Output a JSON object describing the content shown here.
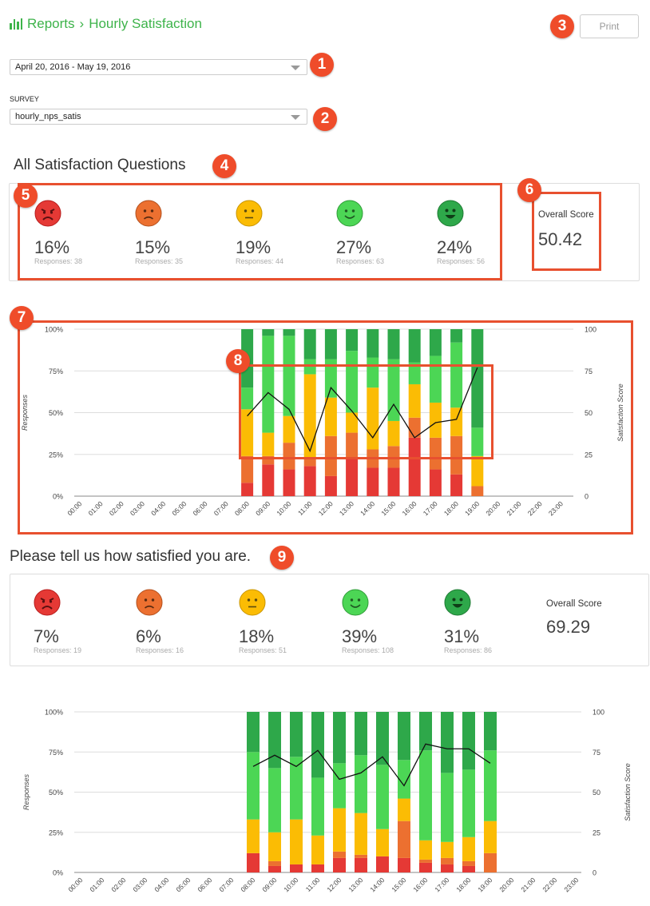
{
  "header": {
    "breadcrumb_root": "Reports",
    "separator": "›",
    "page_title": "Hourly Satisfaction"
  },
  "print_label": "Print",
  "date_range": {
    "value": "April 20, 2016 - May 19, 2016"
  },
  "survey": {
    "label": "SURVEY",
    "value": "hourly_nps_satis"
  },
  "callouts": [
    "1",
    "2",
    "3",
    "4",
    "5",
    "6",
    "7",
    "8",
    "9"
  ],
  "colors": {
    "very_unhappy": "#e53935",
    "unhappy": "#ec7030",
    "neutral": "#fbbc04",
    "happy": "#4cd655",
    "very_happy": "#2ea84a",
    "brand": "#3db34a",
    "callout": "#ef4c2a"
  },
  "sections": [
    {
      "title": "All Satisfaction Questions",
      "overall_label": "Overall Score",
      "overall_score": "50.42",
      "ratings": [
        {
          "icon": "very-unhappy-face-icon",
          "pct": "16%",
          "responses": "Responses: 38"
        },
        {
          "icon": "unhappy-face-icon",
          "pct": "15%",
          "responses": "Responses: 35"
        },
        {
          "icon": "neutral-face-icon",
          "pct": "19%",
          "responses": "Responses: 44"
        },
        {
          "icon": "happy-face-icon",
          "pct": "27%",
          "responses": "Responses: 63"
        },
        {
          "icon": "very-happy-face-icon",
          "pct": "24%",
          "responses": "Responses: 56"
        }
      ]
    },
    {
      "title": "Please tell us how satisfied you are.",
      "overall_label": "Overall Score",
      "overall_score": "69.29",
      "ratings": [
        {
          "icon": "very-unhappy-face-icon",
          "pct": "7%",
          "responses": "Responses: 19"
        },
        {
          "icon": "unhappy-face-icon",
          "pct": "6%",
          "responses": "Responses: 16"
        },
        {
          "icon": "neutral-face-icon",
          "pct": "18%",
          "responses": "Responses: 51"
        },
        {
          "icon": "happy-face-icon",
          "pct": "39%",
          "responses": "Responses: 108"
        },
        {
          "icon": "very-happy-face-icon",
          "pct": "31%",
          "responses": "Responses: 86"
        }
      ]
    }
  ],
  "chart_data": [
    {
      "type": "bar",
      "stacked": true,
      "ylabel": "Responses",
      "y2label": "Satisfaction Score",
      "ylim": [
        0,
        100
      ],
      "y2lim": [
        0,
        100
      ],
      "yticks": [
        "0%",
        "25%",
        "50%",
        "75%",
        "100%"
      ],
      "y2ticks": [
        "0",
        "25",
        "50",
        "75",
        "100"
      ],
      "grid": true,
      "categories": [
        "00:00",
        "01:00",
        "02:00",
        "03:00",
        "04:00",
        "05:00",
        "06:00",
        "07:00",
        "08:00",
        "09:00",
        "10:00",
        "11:00",
        "12:00",
        "13:00",
        "14:00",
        "15:00",
        "16:00",
        "17:00",
        "18:00",
        "19:00",
        "20:00",
        "21:00",
        "22:00",
        "23:00"
      ],
      "series": [
        {
          "values": [
            0,
            0,
            0,
            0,
            0,
            0,
            0,
            0,
            8,
            19,
            16,
            18,
            12,
            23,
            17,
            17,
            35,
            16,
            13,
            0,
            0,
            0,
            0,
            0
          ]
        },
        {
          "values": [
            0,
            0,
            0,
            0,
            0,
            0,
            0,
            0,
            16,
            5,
            16,
            5,
            24,
            15,
            11,
            13,
            12,
            19,
            23,
            6,
            0,
            0,
            0,
            0
          ]
        },
        {
          "values": [
            0,
            0,
            0,
            0,
            0,
            0,
            0,
            0,
            28,
            14,
            16,
            50,
            23,
            12,
            37,
            15,
            20,
            21,
            17,
            18,
            0,
            0,
            0,
            0
          ]
        },
        {
          "values": [
            0,
            0,
            0,
            0,
            0,
            0,
            0,
            0,
            13,
            58,
            48,
            9,
            23,
            37,
            18,
            37,
            13,
            28,
            39,
            17,
            0,
            0,
            0,
            0
          ]
        },
        {
          "values": [
            0,
            0,
            0,
            0,
            0,
            0,
            0,
            0,
            35,
            4,
            4,
            18,
            18,
            13,
            17,
            18,
            20,
            16,
            8,
            59,
            0,
            0,
            0,
            0
          ]
        }
      ],
      "line": {
        "categories": [
          "08:00",
          "09:00",
          "10:00",
          "11:00",
          "12:00",
          "13:00",
          "14:00",
          "15:00",
          "16:00",
          "17:00",
          "18:00",
          "19:00"
        ],
        "values": [
          48,
          62,
          52,
          27,
          65,
          51,
          35,
          55,
          35,
          44,
          46,
          77
        ]
      }
    },
    {
      "type": "bar",
      "stacked": true,
      "ylabel": "Responses",
      "y2label": "Satisfaction Score",
      "ylim": [
        0,
        100
      ],
      "y2lim": [
        0,
        100
      ],
      "yticks": [
        "0%",
        "25%",
        "50%",
        "75%",
        "100%"
      ],
      "y2ticks": [
        "0",
        "25",
        "50",
        "75",
        "100"
      ],
      "grid": true,
      "categories": [
        "00:00",
        "01:00",
        "02:00",
        "03:00",
        "04:00",
        "05:00",
        "06:00",
        "07:00",
        "08:00",
        "09:00",
        "10:00",
        "11:00",
        "12:00",
        "13:00",
        "14:00",
        "15:00",
        "16:00",
        "17:00",
        "18:00",
        "19:00",
        "20:00",
        "21:00",
        "22:00",
        "23:00"
      ],
      "series": [
        {
          "values": [
            0,
            0,
            0,
            0,
            0,
            0,
            0,
            0,
            12,
            4,
            5,
            5,
            9,
            9,
            10,
            9,
            6,
            5,
            4,
            0,
            0,
            0,
            0,
            0
          ]
        },
        {
          "values": [
            0,
            0,
            0,
            0,
            0,
            0,
            0,
            0,
            0,
            3,
            0,
            0,
            4,
            2,
            0,
            23,
            2,
            4,
            3,
            12,
            0,
            0,
            0,
            0
          ]
        },
        {
          "values": [
            0,
            0,
            0,
            0,
            0,
            0,
            0,
            0,
            21,
            18,
            28,
            18,
            27,
            26,
            17,
            14,
            12,
            10,
            15,
            20,
            0,
            0,
            0,
            0
          ]
        },
        {
          "values": [
            0,
            0,
            0,
            0,
            0,
            0,
            0,
            0,
            42,
            40,
            39,
            36,
            28,
            36,
            40,
            24,
            56,
            43,
            42,
            44,
            0,
            0,
            0,
            0
          ]
        },
        {
          "values": [
            0,
            0,
            0,
            0,
            0,
            0,
            0,
            0,
            25,
            35,
            28,
            41,
            32,
            27,
            33,
            30,
            24,
            38,
            36,
            24,
            0,
            0,
            0,
            0
          ]
        }
      ],
      "line": {
        "categories": [
          "08:00",
          "09:00",
          "10:00",
          "11:00",
          "12:00",
          "13:00",
          "14:00",
          "15:00",
          "16:00",
          "17:00",
          "18:00",
          "19:00"
        ],
        "values": [
          66,
          73,
          66,
          76,
          58,
          62,
          72,
          54,
          80,
          77,
          77,
          68
        ]
      }
    }
  ]
}
